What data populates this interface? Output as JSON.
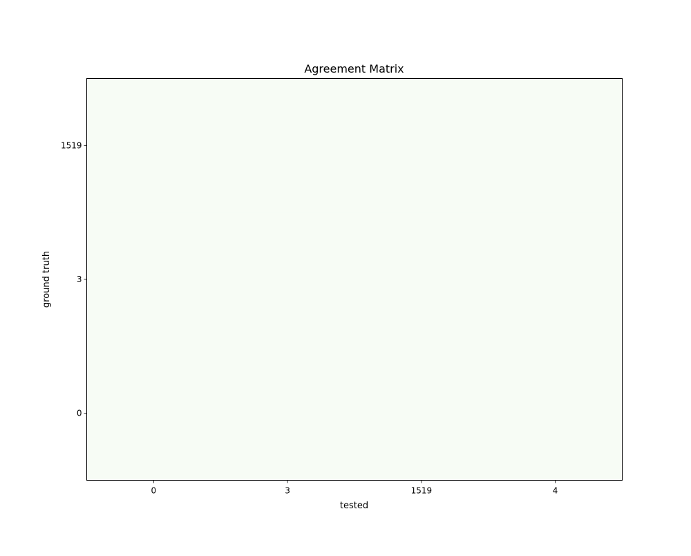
{
  "chart_data": {
    "type": "heatmap",
    "title": "Agreement Matrix",
    "xlabel": "tested",
    "ylabel": "ground truth",
    "x_categories": [
      "0",
      "3",
      "1519",
      "4"
    ],
    "y_categories": [
      "0",
      "3",
      "1519"
    ],
    "values": [
      [
        0,
        0,
        0,
        0
      ],
      [
        0,
        0,
        0,
        0
      ],
      [
        0,
        0,
        0,
        0
      ]
    ],
    "grid": false,
    "colors": {
      "cell_fill": "#f7fcf5",
      "axes_edge": "#000000",
      "text": "#000000"
    }
  }
}
